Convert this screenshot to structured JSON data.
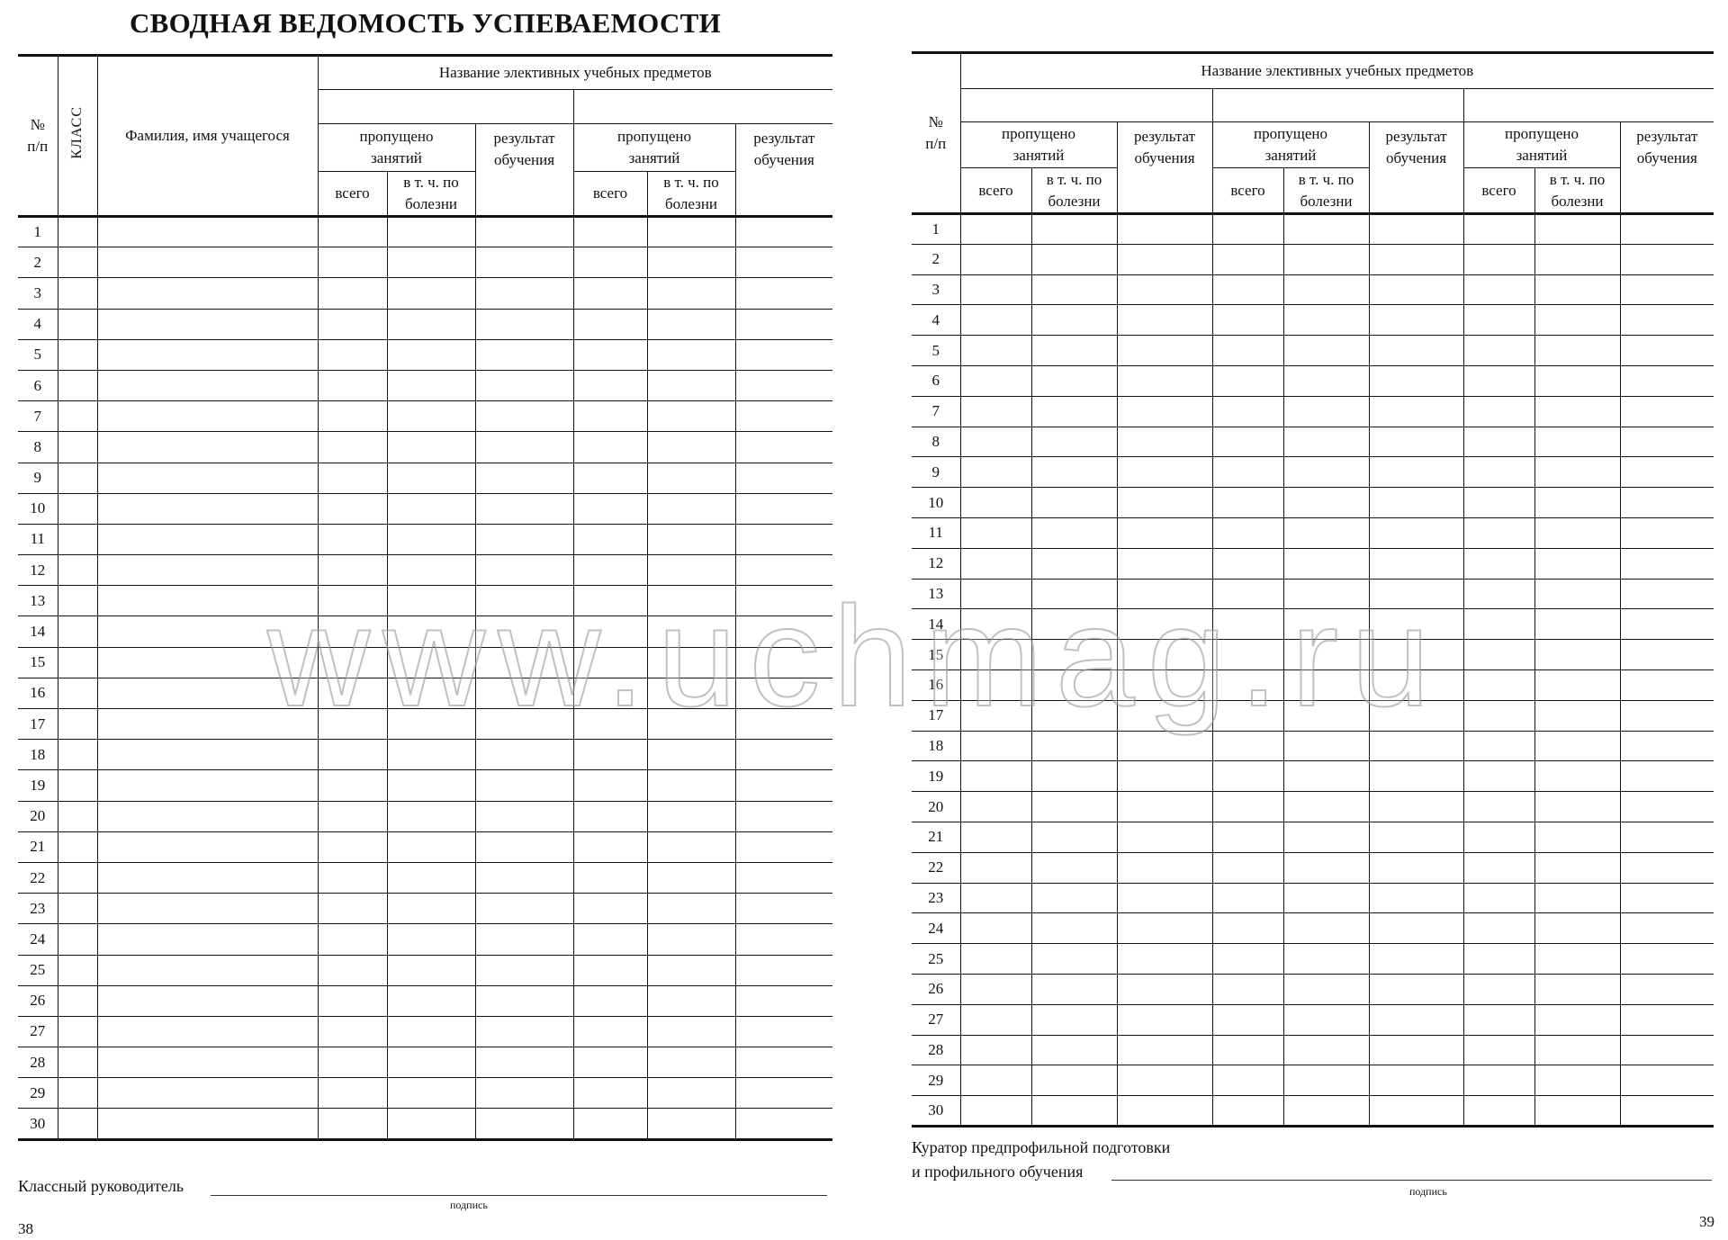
{
  "left_page": {
    "title": "СВОДНАЯ ВЕДОМОСТЬ УСПЕВАЕМОСТИ",
    "header": {
      "num": "№\nп/п",
      "klass": "КЛАСС",
      "name": "Фамилия, имя учащегося",
      "subjects": "Название элективных учебных предметов",
      "missed": "пропущено\nзанятий",
      "total": "всего",
      "illness": "в т. ч. по\nболезни",
      "result": "результат\nобучения"
    },
    "rows": [
      1,
      2,
      3,
      4,
      5,
      6,
      7,
      8,
      9,
      10,
      11,
      12,
      13,
      14,
      15,
      16,
      17,
      18,
      19,
      20,
      21,
      22,
      23,
      24,
      25,
      26,
      27,
      28,
      29,
      30
    ],
    "signature_label": "Классный руководитель",
    "signature_caption": "подпись",
    "page_number": "38"
  },
  "right_page": {
    "header": {
      "num": "№\nп/п",
      "subjects": "Название элективных учебных предметов",
      "missed": "пропущено\nзанятий",
      "total": "всего",
      "illness": "в т. ч. по\nболезни",
      "result": "результат\nобучения"
    },
    "rows": [
      1,
      2,
      3,
      4,
      5,
      6,
      7,
      8,
      9,
      10,
      11,
      12,
      13,
      14,
      15,
      16,
      17,
      18,
      19,
      20,
      21,
      22,
      23,
      24,
      25,
      26,
      27,
      28,
      29,
      30
    ],
    "curator_line1": "Куратор предпрофильной подготовки",
    "curator_line2": "и профильного обучения",
    "signature_caption": "подпись",
    "page_number": "39"
  },
  "watermark": "www.uchmag.ru"
}
